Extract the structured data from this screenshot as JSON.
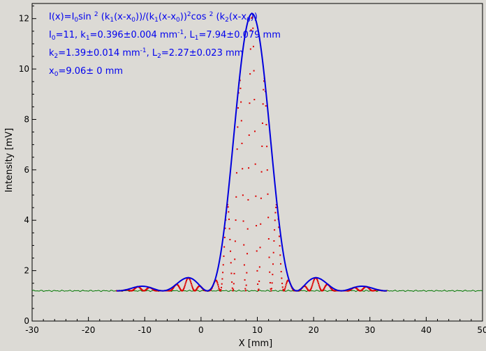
{
  "chart_data": {
    "type": "scatter",
    "xlabel": "X [mm]",
    "ylabel": "Intensity [mV]",
    "xlim": [
      -30,
      50
    ],
    "ylim": [
      0,
      12.6
    ],
    "xticks": [
      -30,
      -20,
      -10,
      0,
      10,
      20,
      30,
      40,
      50
    ],
    "yticks": [
      0,
      2,
      4,
      6,
      8,
      10,
      12
    ],
    "grid": false,
    "fit_params": {
      "I0": 11,
      "baseline": 1.2,
      "k1": 0.396,
      "k2": 1.39,
      "x0": 9.06,
      "fit_x_range": [
        -15,
        33
      ],
      "data_x_range": [
        -15,
        33
      ],
      "baseline_x_range": [
        -30,
        50
      ]
    },
    "annotations": {
      "line1": "I(x)=I0sin 2 (k1(x-x0))/(k1(x-x0))2cos 2 (k2(x-x0))",
      "line2": "I0=11,  k1=0.396±0.004 mm-1,  L1=7.94±0.079 mm",
      "line3": "k2=1.39±0.014 mm-1,  L2=2.27±0.023 mm",
      "line4": "x0=9.06±  0 mm"
    },
    "colors": {
      "fit": "#0000dd",
      "data": "#dd0000",
      "baseline": "#007700",
      "text": "#0000ee",
      "background": "#dcdad5"
    }
  }
}
